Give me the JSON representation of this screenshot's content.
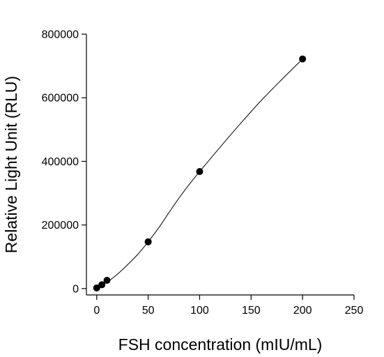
{
  "chart_data": {
    "type": "scatter",
    "title": "",
    "xlabel": "FSH concentration (mIU/mL)",
    "ylabel": "Relative Light Unit (RLU)",
    "xlim": [
      -10,
      250
    ],
    "ylim": [
      -20000,
      800000
    ],
    "xticks": [
      0,
      50,
      100,
      150,
      200,
      250
    ],
    "yticks": [
      0,
      200000,
      400000,
      600000,
      800000
    ],
    "xtick_labels": [
      "0",
      "50",
      "100",
      "150",
      "200",
      "250"
    ],
    "ytick_labels": [
      "0",
      "200000",
      "400000",
      "600000",
      "800000"
    ],
    "grid": false,
    "legend": "none",
    "series": [
      {
        "marker": "filled-circle",
        "color": "#000000",
        "x": [
          0,
          5,
          10,
          50,
          100,
          200
        ],
        "y": [
          2000,
          12000,
          26000,
          147000,
          368000,
          722000
        ]
      }
    ],
    "fit_curve": {
      "style": "thin-line",
      "color": "#000000",
      "x": [
        0,
        10,
        20,
        30,
        40,
        50,
        60,
        70,
        80,
        90,
        100,
        120,
        140,
        160,
        180,
        200
      ],
      "y": [
        2000,
        20000,
        45000,
        75000,
        108000,
        147000,
        190000,
        238000,
        285000,
        328000,
        368000,
        445000,
        520000,
        592000,
        658000,
        722000
      ]
    }
  }
}
